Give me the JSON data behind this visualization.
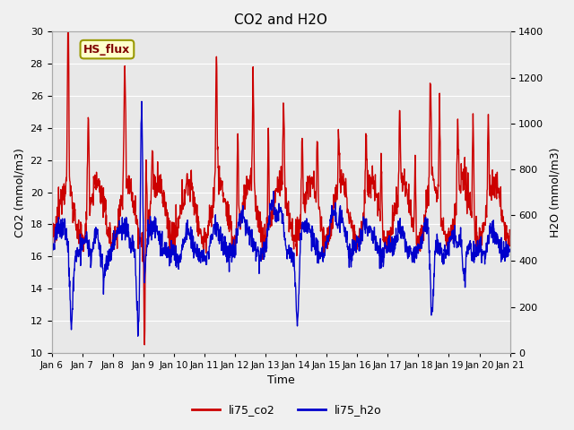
{
  "title": "CO2 and H2O",
  "xlabel": "Time",
  "ylabel_left": "CO2 (mmol/m3)",
  "ylabel_right": "H2O (mmol/m3)",
  "ylim_left": [
    10,
    30
  ],
  "ylim_right": [
    0,
    1400
  ],
  "yticks_left": [
    10,
    12,
    14,
    16,
    18,
    20,
    22,
    24,
    26,
    28,
    30
  ],
  "yticks_right": [
    0,
    200,
    400,
    600,
    800,
    1000,
    1200,
    1400
  ],
  "xtick_labels": [
    "Jan 6",
    "Jan 7",
    "Jan 8",
    "Jan 9",
    "Jan 10",
    "Jan 11",
    "Jan 12",
    "Jan 13",
    "Jan 14",
    "Jan 15",
    "Jan 16",
    "Jan 17",
    "Jan 18",
    "Jan 19",
    "Jan 20",
    "Jan 21"
  ],
  "co2_color": "#cc0000",
  "h2o_color": "#0000cc",
  "co2_label": "li75_co2",
  "h2o_label": "li75_h2o",
  "annotation_text": "HS_flux",
  "annotation_color": "#800000",
  "annotation_bg": "#ffffcc",
  "annotation_edge": "#999900",
  "bg_color": "#f0f0f0",
  "plot_bg_color": "#e8e8e8",
  "grid_color": "#ffffff",
  "line_width": 1.0,
  "title_fontsize": 11,
  "label_fontsize": 9,
  "tick_fontsize": 8
}
